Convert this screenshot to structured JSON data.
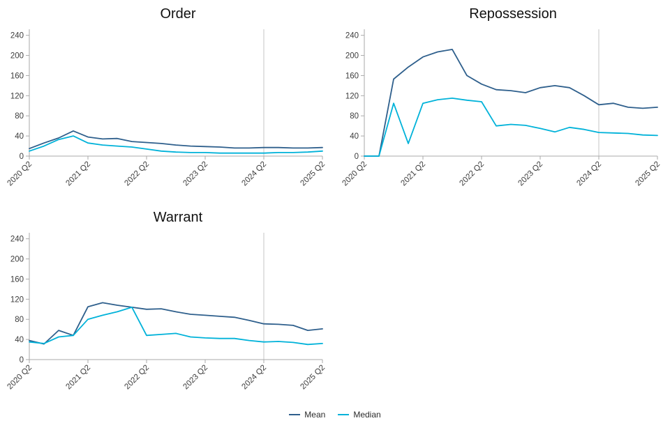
{
  "legend": {
    "items": [
      {
        "label": "Mean",
        "color": "#2e5f8c"
      },
      {
        "label": "Median",
        "color": "#00b2d9"
      }
    ]
  },
  "axis": {
    "y_ticks": [
      0,
      40,
      80,
      120,
      160,
      200,
      240
    ],
    "ylim": [
      0,
      252
    ],
    "x_tick_indices": [
      0,
      4,
      8,
      12,
      16,
      20
    ],
    "x_tick_labels": [
      "2020 Q2",
      "2021 Q2",
      "2022 Q2",
      "2023 Q2",
      "2024 Q2",
      "2025 Q2"
    ],
    "ref_line_x": "2024 Q2",
    "axis_color": "#aaaaaa",
    "ref_line_color": "#c6c6c6",
    "tick_label_color": "#3c3c3c"
  },
  "chart_data": [
    {
      "type": "line",
      "title": "Order",
      "x": [
        "2020 Q2",
        "2020 Q3",
        "2020 Q4",
        "2021 Q1",
        "2021 Q2",
        "2021 Q3",
        "2021 Q4",
        "2022 Q1",
        "2022 Q2",
        "2022 Q3",
        "2022 Q4",
        "2023 Q1",
        "2023 Q2",
        "2023 Q3",
        "2023 Q4",
        "2024 Q1",
        "2024 Q2",
        "2024 Q3",
        "2024 Q4",
        "2025 Q1",
        "2025 Q2"
      ],
      "series": [
        {
          "name": "Mean",
          "color": "#2e5f8c",
          "values": [
            15,
            26,
            36,
            50,
            38,
            34,
            35,
            29,
            27,
            25,
            22,
            20,
            19,
            18,
            16,
            16,
            17,
            17,
            16,
            16,
            17
          ]
        },
        {
          "name": "Median",
          "color": "#00b2d9",
          "values": [
            10,
            20,
            33,
            40,
            26,
            22,
            20,
            18,
            14,
            10,
            8,
            7,
            7,
            6,
            6,
            6,
            6,
            7,
            7,
            8,
            10
          ]
        }
      ],
      "ylim": [
        0,
        252
      ],
      "ref_line_x": "2024 Q2",
      "grid": false,
      "legend_position": "bottom"
    },
    {
      "type": "line",
      "title": "Repossession",
      "x": [
        "2020 Q2",
        "2020 Q3",
        "2020 Q4",
        "2021 Q1",
        "2021 Q2",
        "2021 Q3",
        "2021 Q4",
        "2022 Q1",
        "2022 Q2",
        "2022 Q3",
        "2022 Q4",
        "2023 Q1",
        "2023 Q2",
        "2023 Q3",
        "2023 Q4",
        "2024 Q1",
        "2024 Q2",
        "2024 Q3",
        "2024 Q4",
        "2025 Q1",
        "2025 Q2"
      ],
      "series": [
        {
          "name": "Mean",
          "color": "#2e5f8c",
          "values": [
            0,
            0,
            153,
            177,
            197,
            207,
            212,
            160,
            143,
            132,
            130,
            126,
            136,
            140,
            136,
            120,
            102,
            105,
            97,
            95,
            97
          ]
        },
        {
          "name": "Median",
          "color": "#00b2d9",
          "values": [
            0,
            0,
            105,
            25,
            105,
            112,
            115,
            111,
            108,
            60,
            63,
            61,
            55,
            48,
            57,
            53,
            47,
            46,
            45,
            42,
            41
          ]
        }
      ],
      "ylim": [
        0,
        252
      ],
      "ref_line_x": "2024 Q2",
      "grid": false,
      "legend_position": "bottom"
    },
    {
      "type": "line",
      "title": "Warrant",
      "x": [
        "2020 Q2",
        "2020 Q3",
        "2020 Q4",
        "2021 Q1",
        "2021 Q2",
        "2021 Q3",
        "2021 Q4",
        "2022 Q1",
        "2022 Q2",
        "2022 Q3",
        "2022 Q4",
        "2023 Q1",
        "2023 Q2",
        "2023 Q3",
        "2023 Q4",
        "2024 Q1",
        "2024 Q2",
        "2024 Q3",
        "2024 Q4",
        "2025 Q1",
        "2025 Q2"
      ],
      "series": [
        {
          "name": "Mean",
          "color": "#2e5f8c",
          "values": [
            38,
            31,
            58,
            48,
            105,
            113,
            108,
            104,
            100,
            101,
            95,
            90,
            88,
            86,
            84,
            78,
            71,
            70,
            68,
            58,
            61
          ]
        },
        {
          "name": "Median",
          "color": "#00b2d9",
          "values": [
            35,
            32,
            45,
            48,
            80,
            88,
            95,
            104,
            48,
            50,
            52,
            45,
            43,
            42,
            42,
            38,
            35,
            36,
            34,
            30,
            32
          ]
        }
      ],
      "ylim": [
        0,
        252
      ],
      "ref_line_x": "2024 Q2",
      "grid": false,
      "legend_position": "bottom"
    }
  ]
}
